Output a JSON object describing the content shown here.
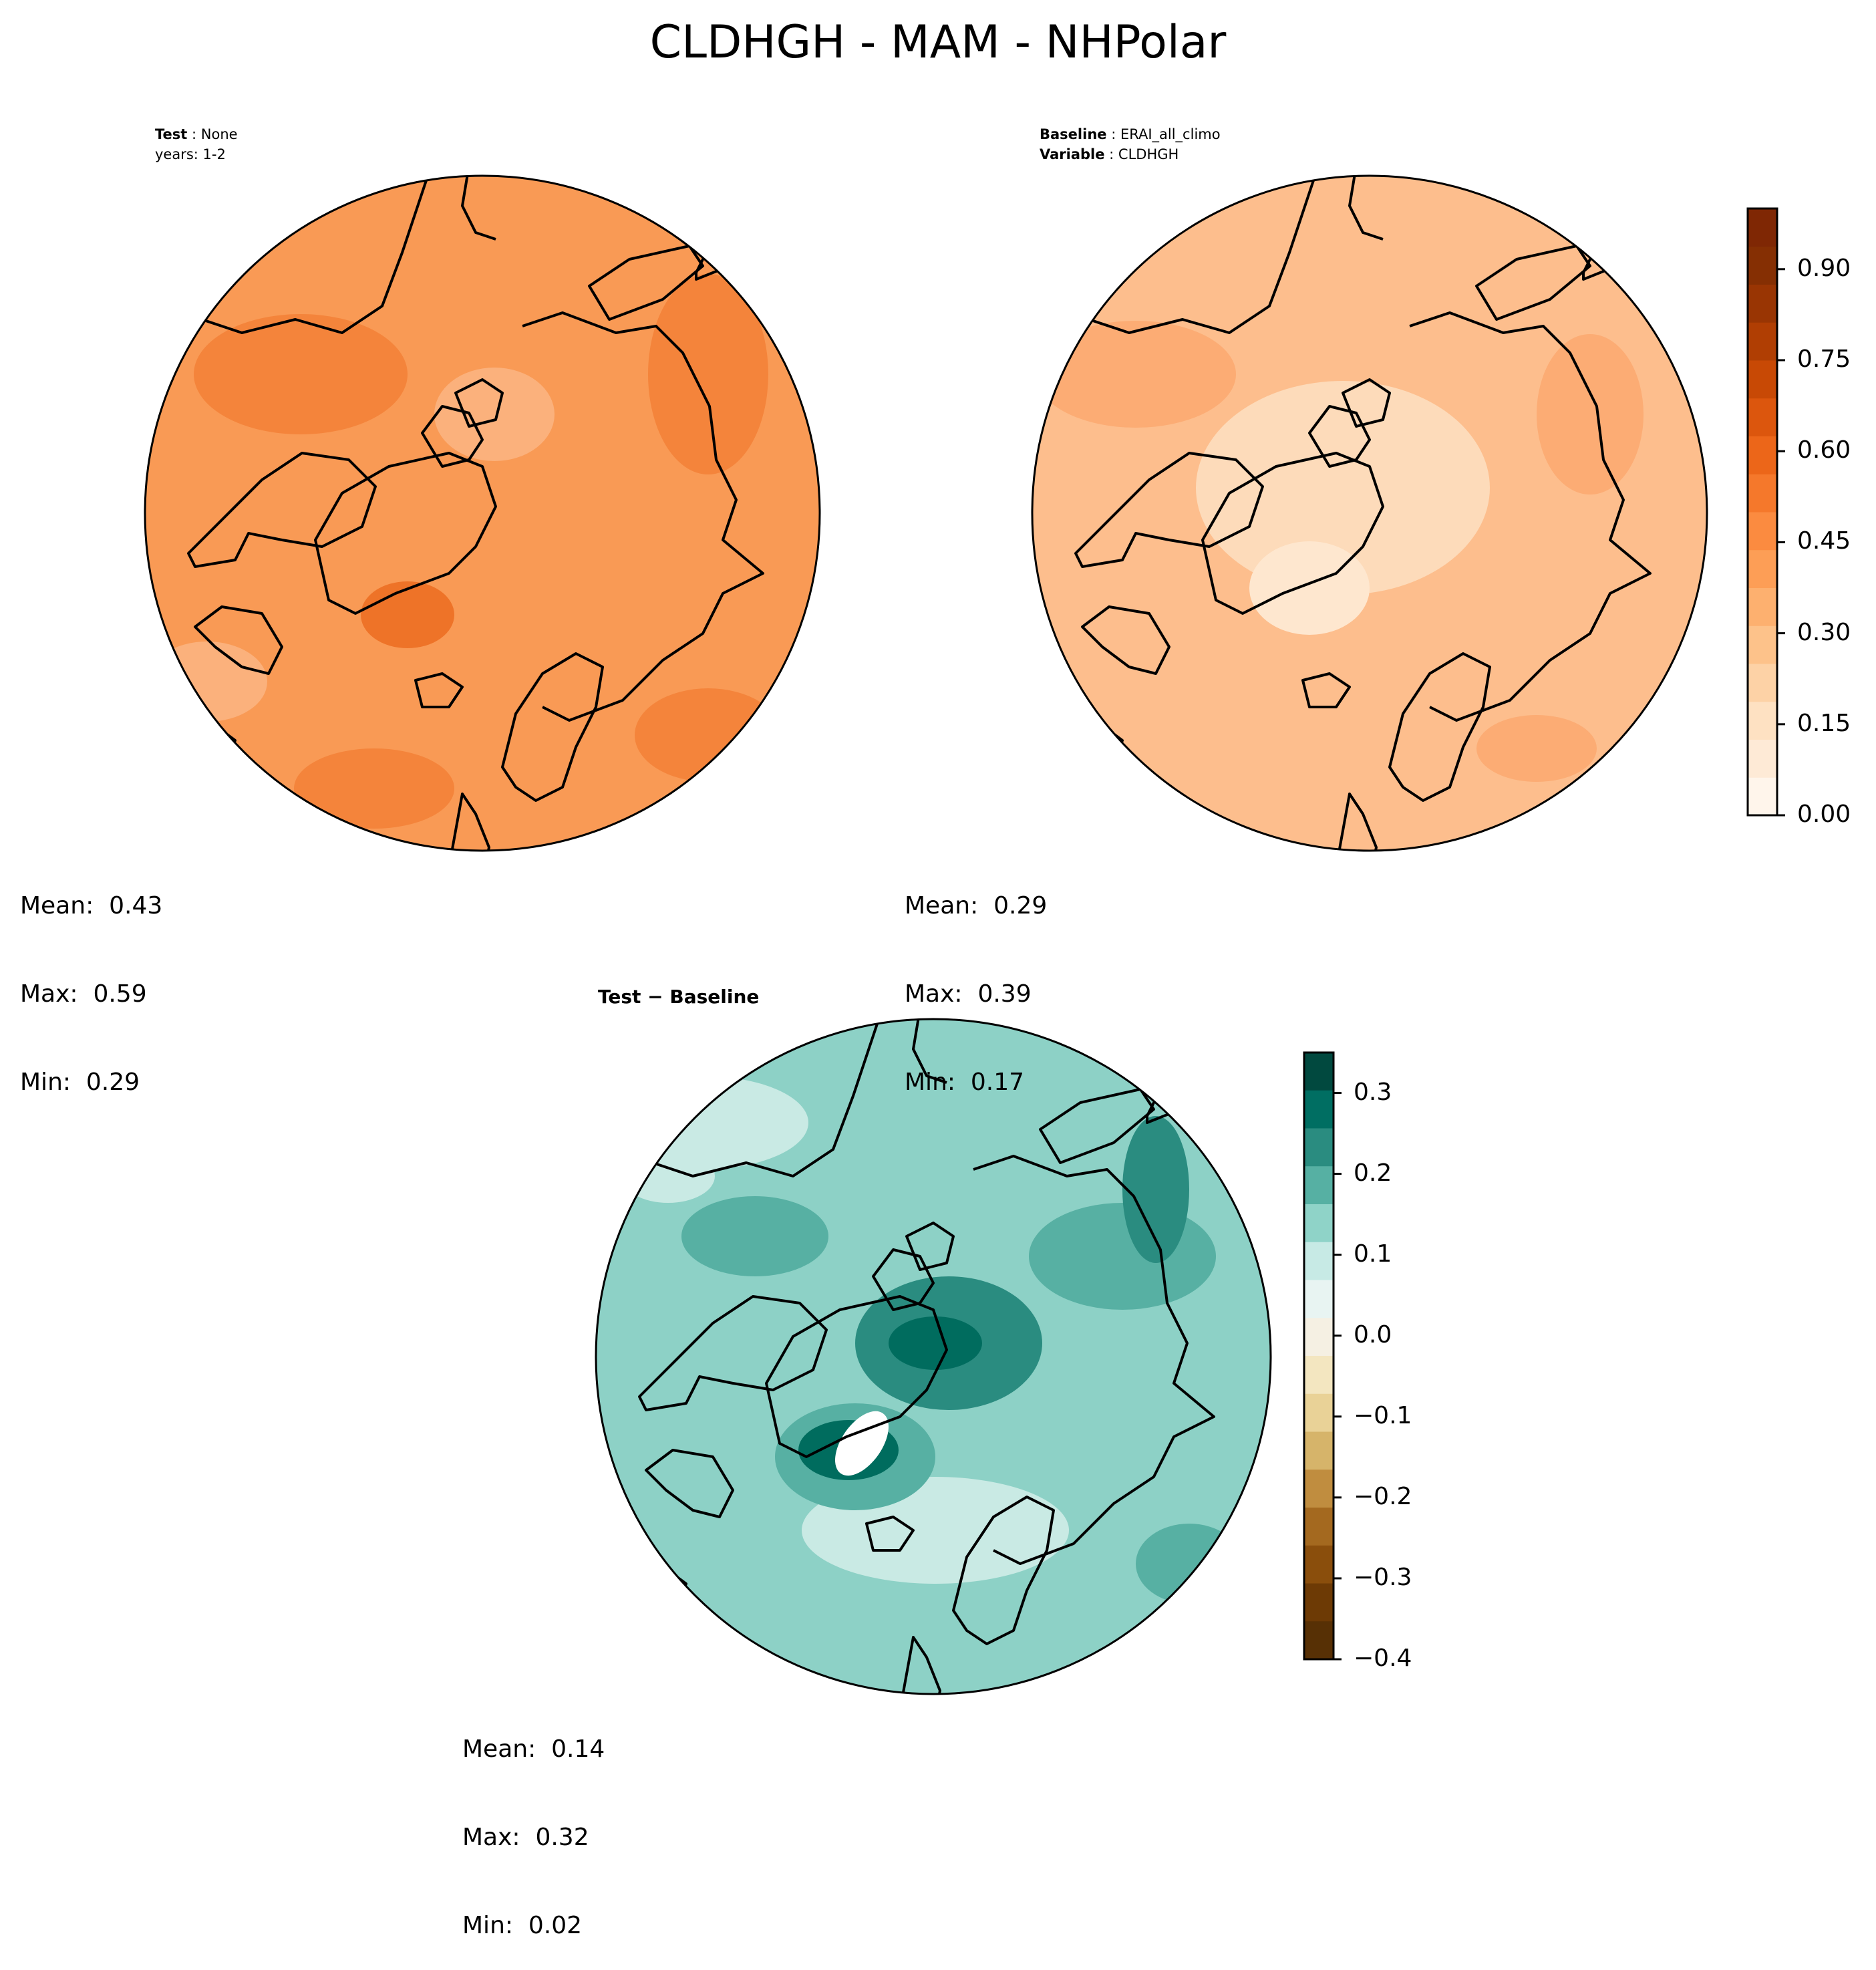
{
  "title": "CLDHGH - MAM - NHPolar",
  "panels": {
    "test": {
      "meta_line1_label": "Test",
      "meta_line1_value": "None",
      "meta_line2": "years: 1-2",
      "mean": "Mean:  0.43",
      "max": "Max:  0.59",
      "min": "Min:  0.29",
      "fill_color": "#f99a55",
      "patch_colors": [
        "#f4843b",
        "#fbb17c",
        "#ee7328",
        "#fdc89f"
      ]
    },
    "baseline": {
      "meta_line1_label": "Baseline",
      "meta_line1_value": "ERAI_all_climo",
      "meta_line2_label": "Variable",
      "meta_line2_value": "CLDHGH",
      "mean": "Mean:  0.29",
      "max": "Max:  0.39",
      "min": "Min:  0.17",
      "fill_color": "#fdbe8d",
      "patch_colors": [
        "#fddbba",
        "#fcac74",
        "#fee7cf"
      ]
    },
    "diff": {
      "meta_label": "Test − Baseline",
      "mean": "Mean:  0.14",
      "max": "Max:  0.32",
      "min": "Min:  0.02",
      "fill_color": "#8dd1c6",
      "patch_colors": [
        "#57b0a3",
        "#2a8c80",
        "#006c5e",
        "#c9eae4",
        "#ffffff"
      ]
    }
  },
  "colorbar_top": {
    "ticks": [
      "0.00",
      "0.15",
      "0.30",
      "0.45",
      "0.60",
      "0.75",
      "0.90"
    ],
    "colors": [
      "#fff5eb",
      "#feead6",
      "#fee1c2",
      "#fdd2a6",
      "#fdc28a",
      "#fdb06f",
      "#fd9e56",
      "#fb8b40",
      "#f5782b",
      "#ec6619",
      "#dc560d",
      "#c84905",
      "#b03e03",
      "#993503",
      "#852f03",
      "#7f2704"
    ]
  },
  "colorbar_diff": {
    "ticks": [
      "0.3",
      "0.2",
      "0.1",
      "0.0",
      "−0.1",
      "−0.2",
      "−0.3",
      "−0.4"
    ],
    "colors": [
      "#01493f",
      "#006e62",
      "#2a8c80",
      "#56b0a3",
      "#8fd3c8",
      "#c7eae5",
      "#e8f4f2",
      "#f5f0e3",
      "#f3e6c0",
      "#e9d297",
      "#d6b46a",
      "#c08d3f",
      "#a4691f",
      "#8a4e0c",
      "#6d3a05",
      "#573005"
    ]
  }
}
